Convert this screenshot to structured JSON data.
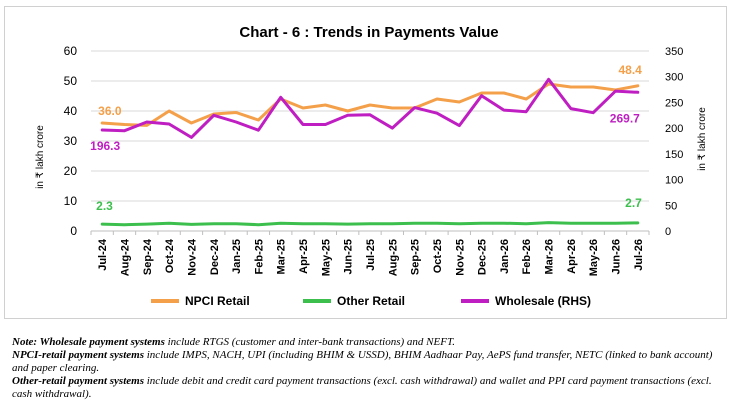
{
  "chart_data": {
    "type": "line",
    "title": "Chart - 6 : Trends in Payments Value",
    "ylabel_left": "in ₹ lakh crore",
    "ylabel_right": "in ₹ lakh crore",
    "ylim_left": [
      0,
      60
    ],
    "yticks_left": [
      "0",
      "10",
      "20",
      "30",
      "40",
      "50",
      "60"
    ],
    "ylim_right": [
      0,
      350
    ],
    "yticks_right": [
      "0",
      "50",
      "100",
      "150",
      "200",
      "250",
      "300",
      "350"
    ],
    "grid": true,
    "legend_position": "bottom",
    "categories": [
      "Jul-24",
      "Aug-24",
      "Sep-24",
      "Oct-24",
      "Nov-24",
      "Dec-24",
      "Jan-25",
      "Feb-25",
      "Mar-25",
      "Apr-25",
      "May-25",
      "Jun-25",
      "Jul-25",
      "Aug-25",
      "Sep-25",
      "Oct-25",
      "Nov-25",
      "Dec-25",
      "Jan-26",
      "Feb-26",
      "Mar-26",
      "Apr-26",
      "May-26",
      "Jun-26",
      "Jul-26"
    ],
    "series": [
      {
        "name": "NPCI Retail",
        "axis": "left",
        "color": "#f4a04a",
        "values": [
          36.0,
          35.5,
          35.2,
          40.0,
          36.0,
          39.0,
          39.5,
          37.0,
          44.0,
          41.0,
          42.0,
          40.0,
          42.0,
          41.0,
          41.0,
          44.0,
          43.0,
          46.0,
          46.0,
          44.0,
          49.0,
          48.0,
          48.0,
          47.0,
          48.4
        ]
      },
      {
        "name": "Other Retail",
        "axis": "left",
        "color": "#3dbf4e",
        "values": [
          2.3,
          2.1,
          2.3,
          2.6,
          2.2,
          2.4,
          2.4,
          2.1,
          2.6,
          2.4,
          2.4,
          2.3,
          2.4,
          2.4,
          2.6,
          2.6,
          2.4,
          2.6,
          2.6,
          2.4,
          2.8,
          2.6,
          2.6,
          2.6,
          2.7
        ]
      },
      {
        "name": "Wholesale (RHS)",
        "axis": "right",
        "color": "#bf1fc2",
        "values": [
          196.3,
          195.0,
          212.0,
          208.0,
          182.0,
          225.0,
          212.0,
          196.0,
          260.0,
          207.0,
          207.0,
          225.0,
          226.0,
          200.0,
          240.0,
          229.0,
          205.0,
          263.0,
          235.0,
          232.0,
          295.0,
          238.0,
          230.0,
          272.0,
          269.7
        ]
      }
    ],
    "annotations": {
      "npci_first": "36.0",
      "npci_last": "48.4",
      "other_first": "2.3",
      "other_last": "2.7",
      "wholesale_first": "196.3",
      "wholesale_last": "269.7"
    }
  },
  "notes": {
    "wholesale_label": "Note: Wholesale payment systems",
    "wholesale_text": " include RTGS (customer and inter-bank transactions) and NEFT.",
    "npci_label": "NPCI-retail payment systems",
    "npci_text": " include IMPS, NACH, UPI (including BHIM & USSD), BHIM Aadhaar Pay, AePS fund transfer, NETC (linked to bank account) and paper clearing.",
    "other_label": "Other-retail payment systems",
    "other_text": " include debit and credit card payment transactions (excl. cash withdrawal) and wallet and PPI card payment transactions (excl. cash withdrawal)."
  }
}
